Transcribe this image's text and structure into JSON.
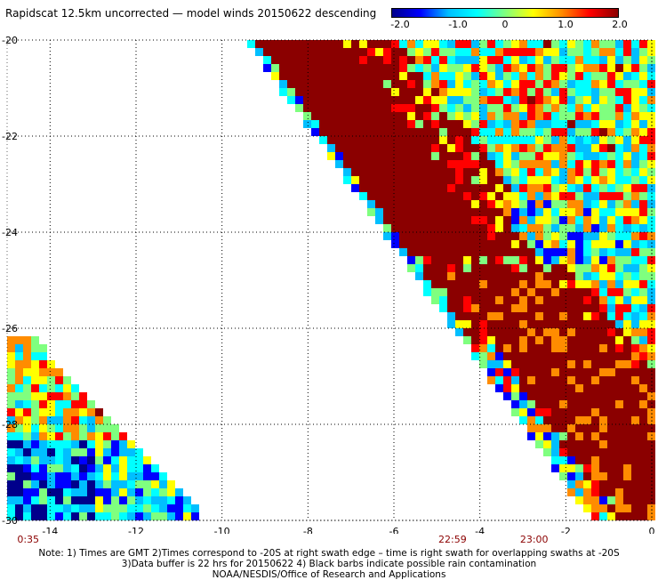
{
  "title": "Rapidscat 12.5km uncorrected — model winds 20150622 descending",
  "colorbar": {
    "labels": [
      "-2.0",
      "-1.0",
      "0",
      "1.0",
      "2.0"
    ],
    "colors": [
      "#00008b",
      "#0000ff",
      "#00bfff",
      "#00ffff",
      "#7fff7f",
      "#ffff00",
      "#ff8c00",
      "#ff0000",
      "#8b0000"
    ]
  },
  "map": {
    "lon_ticks": [
      "-14",
      "-12",
      "-10",
      "-8",
      "-6",
      "-4",
      "-2",
      "0"
    ],
    "lat_ticks": [
      "-20",
      "-22",
      "-24",
      "-26",
      "-28",
      "-30"
    ],
    "lon_range": [
      -15,
      0
    ],
    "lat_range": [
      -30,
      -20
    ]
  },
  "time_labels": [
    {
      "text": "0:35",
      "lon": -14.6
    },
    {
      "text": "22:59",
      "lon": -4.8
    },
    {
      "text": "23:00",
      "lon": -2.9
    }
  ],
  "notes": [
    "Note: 1) Times are GMT 2)Times correspond to -20S at right swath edge – time is right swath for overlapping swaths at -20S",
    "3)Data buffer is 22 hrs for 20150622 4) Black barbs indicate possible rain contamination",
    "NOAA/NESDIS/Office of Research and Applications"
  ]
}
